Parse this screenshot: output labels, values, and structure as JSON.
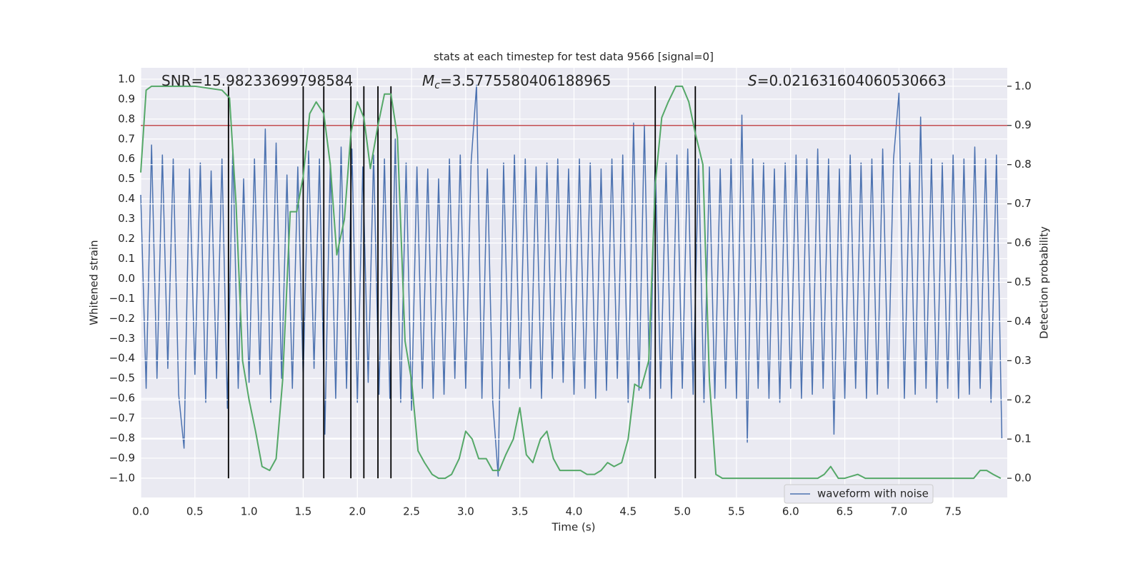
{
  "chart_data": {
    "type": "line",
    "title": "stats at each timestep for test data 9566 [signal=0]",
    "x_label": "Time (s)",
    "y_label": "Whitened strain",
    "y2_label": "Detection probability",
    "annotations": [
      {
        "text": "SNR=15.98233699798584"
      },
      {
        "italic": "M",
        "sub": "c",
        "text": "=3.5775580406188965"
      },
      {
        "italic": "S",
        "text": "=0.021631604060530663"
      }
    ],
    "xlim": [
      0,
      8
    ],
    "ylim": [
      -1.097,
      1.057
    ],
    "y2lim": [
      -0.049,
      1.047
    ],
    "xticks": [
      {
        "value": 0,
        "label": "0.0"
      },
      {
        "value": 0.5,
        "label": "0.5"
      },
      {
        "value": 1,
        "label": "1.0"
      },
      {
        "value": 1.5,
        "label": "1.5"
      },
      {
        "value": 2,
        "label": "2.0"
      },
      {
        "value": 2.5,
        "label": "2.5"
      },
      {
        "value": 3,
        "label": "3.0"
      },
      {
        "value": 3.5,
        "label": "3.5"
      },
      {
        "value": 4,
        "label": "4.0"
      },
      {
        "value": 4.5,
        "label": "4.5"
      },
      {
        "value": 5,
        "label": "5.0"
      },
      {
        "value": 5.5,
        "label": "5.5"
      },
      {
        "value": 6,
        "label": "6.0"
      },
      {
        "value": 6.5,
        "label": "6.5"
      },
      {
        "value": 7,
        "label": "7.0"
      },
      {
        "value": 7.5,
        "label": "7.5"
      }
    ],
    "yticks": [
      {
        "value": -1,
        "label": "−1.0"
      },
      {
        "value": -0.9,
        "label": "−0.9"
      },
      {
        "value": -0.8,
        "label": "−0.8"
      },
      {
        "value": -0.7,
        "label": "−0.7"
      },
      {
        "value": -0.6,
        "label": "−0.6"
      },
      {
        "value": -0.5,
        "label": "−0.5"
      },
      {
        "value": -0.4,
        "label": "−0.4"
      },
      {
        "value": -0.3,
        "label": "−0.3"
      },
      {
        "value": -0.2,
        "label": "−0.2"
      },
      {
        "value": -0.1,
        "label": "−0.1"
      },
      {
        "value": 0,
        "label": "0.0"
      },
      {
        "value": 0.1,
        "label": "0.1"
      },
      {
        "value": 0.2,
        "label": "0.2"
      },
      {
        "value": 0.3,
        "label": "0.3"
      },
      {
        "value": 0.4,
        "label": "0.4"
      },
      {
        "value": 0.5,
        "label": "0.5"
      },
      {
        "value": 0.6,
        "label": "0.6"
      },
      {
        "value": 0.7,
        "label": "0.7"
      },
      {
        "value": 0.8,
        "label": "0.8"
      },
      {
        "value": 0.9,
        "label": "0.9"
      },
      {
        "value": 1,
        "label": "1.0"
      }
    ],
    "y2ticks": [
      {
        "value": 0,
        "label": "0.0"
      },
      {
        "value": 0.1,
        "label": "0.1"
      },
      {
        "value": 0.2,
        "label": "0.2"
      },
      {
        "value": 0.3,
        "label": "0.3"
      },
      {
        "value": 0.4,
        "label": "0.4"
      },
      {
        "value": 0.5,
        "label": "0.5"
      },
      {
        "value": 0.6,
        "label": "0.6"
      },
      {
        "value": 0.7,
        "label": "0.7"
      },
      {
        "value": 0.8,
        "label": "0.8"
      },
      {
        "value": 0.9,
        "label": "0.9"
      },
      {
        "value": 1,
        "label": "1.0"
      }
    ],
    "grid": true,
    "legend": "lower right",
    "series": [
      {
        "name": "waveform with noise",
        "color": "#4c72b0",
        "x": [
          0,
          0.05,
          0.1,
          0.15,
          0.2,
          0.25,
          0.3,
          0.35,
          0.4,
          0.45,
          0.5,
          0.55,
          0.6,
          0.65,
          0.7,
          0.75,
          0.8,
          0.85,
          0.9,
          0.95,
          1,
          1.05,
          1.1,
          1.15,
          1.2,
          1.25,
          1.3,
          1.35,
          1.4,
          1.45,
          1.5,
          1.55,
          1.6,
          1.65,
          1.7,
          1.75,
          1.8,
          1.85,
          1.9,
          1.95,
          2,
          2.05,
          2.1,
          2.15,
          2.2,
          2.25,
          2.3,
          2.35,
          2.4,
          2.45,
          2.5,
          2.55,
          2.6,
          2.65,
          2.7,
          2.75,
          2.8,
          2.85,
          2.9,
          2.95,
          3,
          3.05,
          3.1,
          3.15,
          3.2,
          3.25,
          3.3,
          3.35,
          3.4,
          3.45,
          3.5,
          3.55,
          3.6,
          3.65,
          3.7,
          3.75,
          3.8,
          3.85,
          3.9,
          3.95,
          4,
          4.05,
          4.1,
          4.15,
          4.2,
          4.25,
          4.3,
          4.35,
          4.4,
          4.45,
          4.5,
          4.55,
          4.6,
          4.65,
          4.7,
          4.75,
          4.8,
          4.85,
          4.9,
          4.95,
          5,
          5.05,
          5.1,
          5.15,
          5.2,
          5.25,
          5.3,
          5.35,
          5.4,
          5.45,
          5.5,
          5.55,
          5.6,
          5.65,
          5.7,
          5.75,
          5.8,
          5.85,
          5.9,
          5.95,
          6,
          6.05,
          6.1,
          6.15,
          6.2,
          6.25,
          6.3,
          6.35,
          6.4,
          6.45,
          6.5,
          6.55,
          6.6,
          6.65,
          6.7,
          6.75,
          6.8,
          6.85,
          6.9,
          6.95,
          7,
          7.05,
          7.1,
          7.15,
          7.2,
          7.25,
          7.3,
          7.35,
          7.4,
          7.45,
          7.5,
          7.55,
          7.6,
          7.65,
          7.7,
          7.75,
          7.8,
          7.85,
          7.9,
          7.95
        ],
        "values": [
          0.42,
          -0.55,
          0.67,
          -0.5,
          0.62,
          -0.45,
          0.6,
          -0.58,
          -0.85,
          0.55,
          -0.48,
          0.58,
          -0.62,
          0.54,
          -0.5,
          0.6,
          -0.65,
          0.65,
          -0.55,
          0.5,
          -0.52,
          0.6,
          -0.48,
          0.75,
          -0.62,
          0.68,
          -0.5,
          0.52,
          -0.55,
          0.56,
          -0.5,
          0.64,
          -0.45,
          0.6,
          -0.78,
          0.58,
          -0.6,
          0.66,
          -0.55,
          0.65,
          -0.62,
          0.56,
          -0.52,
          0.62,
          -0.58,
          0.6,
          -0.6,
          0.7,
          -0.62,
          0.58,
          -0.66,
          0.56,
          -0.55,
          0.55,
          -0.6,
          0.5,
          -0.58,
          0.6,
          -0.5,
          0.62,
          -0.55,
          0.58,
          0.97,
          -0.6,
          0.55,
          -0.62,
          -0.99,
          0.58,
          -0.55,
          0.62,
          -0.5,
          0.6,
          -0.55,
          0.56,
          -0.6,
          0.58,
          -0.5,
          0.6,
          -0.52,
          0.55,
          -0.58,
          0.6,
          -0.55,
          0.58,
          -0.6,
          0.55,
          -0.56,
          0.6,
          -0.5,
          0.62,
          -0.62,
          0.78,
          -0.56,
          0.77,
          -0.6,
          0.6,
          -0.55,
          0.58,
          -0.6,
          0.62,
          -0.55,
          0.65,
          -0.58,
          0.6,
          -0.62,
          0.56,
          -0.6,
          0.55,
          -0.55,
          0.6,
          -0.6,
          0.82,
          -0.82,
          0.6,
          -0.55,
          0.58,
          -0.6,
          0.55,
          -0.62,
          0.58,
          -0.55,
          0.62,
          -0.6,
          0.6,
          -0.58,
          0.65,
          -0.55,
          0.6,
          -0.78,
          0.55,
          -0.6,
          0.62,
          -0.55,
          0.58,
          -0.6,
          0.6,
          -0.58,
          0.65,
          -0.55,
          0.6,
          0.93,
          -0.6,
          0.58,
          -0.58,
          0.81,
          -0.55,
          0.6,
          -0.62,
          0.58,
          -0.55,
          0.62,
          -0.6,
          0.6,
          -0.58,
          0.66,
          -0.55,
          0.6,
          -0.62,
          0.62,
          -0.8
        ]
      },
      {
        "color": "#55a868",
        "axis": "y2",
        "x": [
          0,
          0.05,
          0.1,
          0.5,
          0.75,
          0.82,
          0.88,
          0.94,
          1.0,
          1.06,
          1.12,
          1.19,
          1.25,
          1.31,
          1.38,
          1.44,
          1.5,
          1.56,
          1.62,
          1.69,
          1.75,
          1.81,
          1.88,
          1.94,
          2.0,
          2.06,
          2.12,
          2.19,
          2.25,
          2.31,
          2.37,
          2.44,
          2.5,
          2.56,
          2.62,
          2.69,
          2.75,
          2.81,
          2.87,
          2.94,
          3.0,
          3.06,
          3.12,
          3.19,
          3.25,
          3.31,
          3.37,
          3.44,
          3.5,
          3.56,
          3.62,
          3.69,
          3.75,
          3.81,
          3.87,
          3.94,
          4.0,
          4.06,
          4.12,
          4.19,
          4.25,
          4.31,
          4.37,
          4.44,
          4.5,
          4.56,
          4.62,
          4.69,
          4.75,
          4.81,
          4.87,
          4.94,
          5.0,
          5.06,
          5.12,
          5.19,
          5.25,
          5.31,
          5.37,
          5.5,
          6.0,
          6.25,
          6.31,
          6.37,
          6.44,
          6.5,
          6.62,
          6.69,
          6.75,
          7.0,
          7.69,
          7.75,
          7.81,
          7.87,
          7.94
        ],
        "values": [
          0.78,
          0.99,
          1.0,
          1.0,
          0.99,
          0.97,
          0.7,
          0.3,
          0.2,
          0.12,
          0.03,
          0.02,
          0.05,
          0.25,
          0.68,
          0.68,
          0.77,
          0.93,
          0.96,
          0.93,
          0.8,
          0.57,
          0.66,
          0.88,
          0.96,
          0.92,
          0.79,
          0.9,
          0.98,
          0.98,
          0.87,
          0.35,
          0.25,
          0.07,
          0.04,
          0.01,
          0.0,
          0.0,
          0.01,
          0.05,
          0.12,
          0.1,
          0.05,
          0.05,
          0.02,
          0.02,
          0.06,
          0.1,
          0.18,
          0.06,
          0.04,
          0.1,
          0.12,
          0.05,
          0.02,
          0.02,
          0.02,
          0.02,
          0.01,
          0.01,
          0.02,
          0.04,
          0.03,
          0.04,
          0.1,
          0.24,
          0.23,
          0.3,
          0.75,
          0.92,
          0.96,
          1.0,
          1.0,
          0.96,
          0.88,
          0.8,
          0.25,
          0.01,
          0.0,
          0.0,
          0.0,
          0.0,
          0.01,
          0.03,
          0.0,
          0.0,
          0.01,
          0.0,
          0.0,
          0.0,
          0.0,
          0.02,
          0.02,
          0.01,
          0.0
        ]
      }
    ],
    "hline": {
      "y": 0.9,
      "axis": "y2",
      "color": "#c44e52"
    },
    "vlines": {
      "x": [
        0.81,
        1.5,
        1.69,
        1.94,
        2.06,
        2.19,
        2.31,
        4.75,
        5.12
      ],
      "ymin": 0,
      "ymax": 1,
      "axis": "y2",
      "color": "#000000"
    }
  }
}
